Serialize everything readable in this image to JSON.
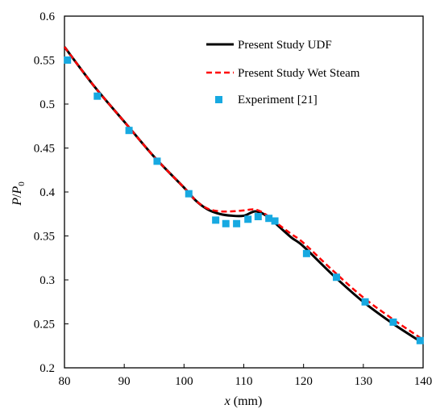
{
  "chart_data": {
    "type": "line",
    "title": "",
    "xlabel": "x (mm)",
    "xlabel_parts": {
      "var": "x",
      "unit": " (mm)"
    },
    "ylabel": "P/P0",
    "ylabel_parts": {
      "num": "P",
      "slash": "/",
      "den": "P",
      "sub": "0"
    },
    "xlim": [
      80,
      140
    ],
    "ylim": [
      0.2,
      0.6
    ],
    "x_ticks": [
      80,
      90,
      100,
      110,
      120,
      130,
      140
    ],
    "x_tick_labels": [
      "80",
      "90",
      "100",
      "110",
      "120",
      "130",
      "140"
    ],
    "y_ticks": [
      0.2,
      0.25,
      0.3,
      0.35,
      0.4,
      0.45,
      0.5,
      0.55,
      0.6
    ],
    "y_tick_labels": [
      "0.2",
      "0.25",
      "0.3",
      "0.35",
      "0.4",
      "0.45",
      "0.5",
      "0.55",
      "0.6"
    ],
    "grid": false,
    "legend_position": "top-right",
    "series": [
      {
        "name": "Present Study UDF",
        "style": "solid",
        "color": "#000000",
        "x": [
          80,
          85,
          90,
          95,
          100,
          102,
          104,
          106,
          108,
          110,
          112,
          114,
          116,
          118,
          120,
          125,
          130,
          135,
          140
        ],
        "y": [
          0.565,
          0.52,
          0.48,
          0.44,
          0.405,
          0.39,
          0.38,
          0.375,
          0.373,
          0.373,
          0.378,
          0.372,
          0.36,
          0.348,
          0.338,
          0.305,
          0.275,
          0.25,
          0.228
        ]
      },
      {
        "name": "Present Study Wet Steam",
        "style": "dashed",
        "color": "#ff0000",
        "x": [
          80,
          85,
          90,
          95,
          100,
          102,
          104,
          106,
          108,
          110,
          112,
          114,
          116,
          118,
          120,
          125,
          130,
          135,
          140
        ],
        "y": [
          0.565,
          0.52,
          0.48,
          0.44,
          0.405,
          0.39,
          0.381,
          0.378,
          0.378,
          0.379,
          0.38,
          0.373,
          0.362,
          0.352,
          0.342,
          0.31,
          0.28,
          0.255,
          0.232
        ]
      },
      {
        "name": "Experiment [21]",
        "style": "markers",
        "color": "#17a9e1",
        "x": [
          80.5,
          85.5,
          90.8,
          95.5,
          100.8,
          105.3,
          107,
          108.8,
          110.7,
          112.4,
          114.2,
          115.2,
          120.5,
          125.5,
          130.3,
          135,
          139.5
        ],
        "y": [
          0.55,
          0.509,
          0.47,
          0.435,
          0.398,
          0.368,
          0.364,
          0.364,
          0.369,
          0.372,
          0.37,
          0.367,
          0.33,
          0.303,
          0.275,
          0.252,
          0.231
        ]
      }
    ]
  }
}
